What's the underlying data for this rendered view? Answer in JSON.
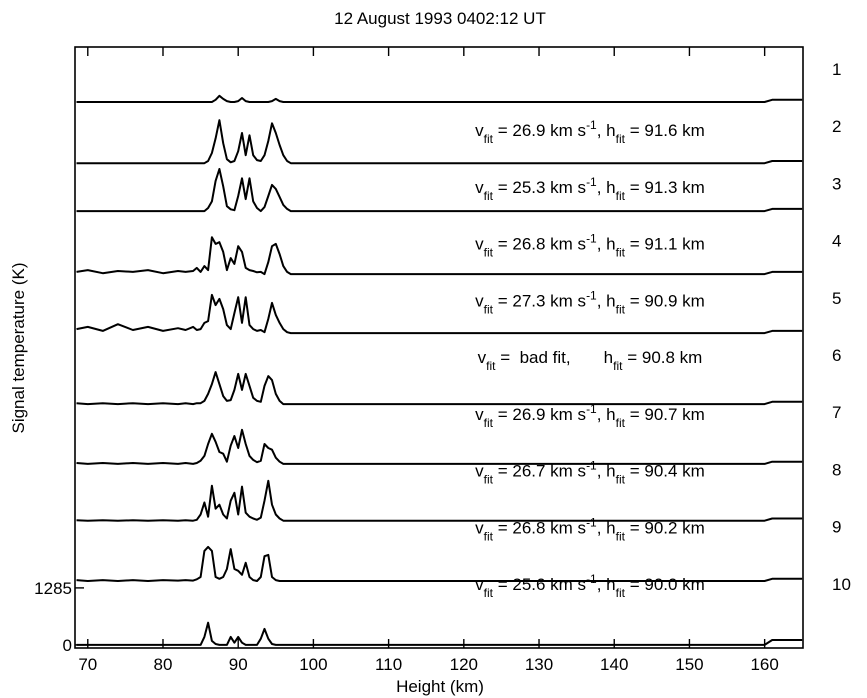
{
  "chart_data": {
    "type": "line",
    "title": "12 August 1993 0402:12 UT",
    "x_label": "Height (km)",
    "y_label": "Signal temperature (K)",
    "xlim": [
      68.3,
      165.1
    ],
    "ylim": [
      -70,
      13480
    ],
    "xticks": [
      70,
      80,
      90,
      100,
      110,
      120,
      130,
      140,
      150,
      160
    ],
    "yticks": [
      0,
      1285
    ],
    "x": [
      68.5,
      70,
      72,
      74,
      76,
      78,
      80,
      82,
      83,
      84,
      84.5,
      85,
      85.5,
      86,
      86.5,
      87,
      87.5,
      88,
      88.5,
      89,
      89.5,
      90,
      90.5,
      91,
      91.5,
      92,
      92.5,
      93,
      93.5,
      94,
      94.5,
      95,
      95.5,
      96,
      96.5,
      97,
      98,
      100,
      110,
      120,
      130,
      140,
      150,
      160,
      161,
      165
    ],
    "series": [
      {
        "name": "1",
        "color": "#000000",
        "values": [
          12240,
          12240,
          12240,
          12240,
          12240,
          12240,
          12240,
          12240,
          12240,
          12240,
          12240,
          12240,
          12240,
          12240,
          12240,
          12290,
          12380,
          12310,
          12260,
          12240,
          12240,
          12260,
          12330,
          12260,
          12240,
          12240,
          12240,
          12240,
          12240,
          12240,
          12260,
          12310,
          12260,
          12240,
          12240,
          12240,
          12240,
          12240,
          12240,
          12240,
          12240,
          12240,
          12240,
          12240,
          12290,
          12290
        ]
      },
      {
        "name": "2",
        "color": "#000000",
        "annotation": [
          {
            "text": "v"
          },
          {
            "text": "fit",
            "style": "sub"
          },
          {
            "text": " = 26.9 km s"
          },
          {
            "text": "-1",
            "style": "super"
          },
          {
            "text": ", h"
          },
          {
            "text": "fit",
            "style": "sub"
          },
          {
            "text": " = 91.6 km"
          }
        ],
        "values": [
          10860,
          10860,
          10860,
          10860,
          10860,
          10860,
          10860,
          10860,
          10860,
          10860,
          10860,
          10860,
          10860,
          10910,
          11090,
          11420,
          11830,
          11310,
          10950,
          10880,
          10910,
          11130,
          11540,
          11040,
          11490,
          11040,
          10930,
          10910,
          11040,
          11360,
          11760,
          11540,
          11270,
          11040,
          10910,
          10860,
          10860,
          10860,
          10860,
          10860,
          10860,
          10860,
          10860,
          10860,
          10910,
          10910
        ]
      },
      {
        "name": "3",
        "color": "#000000",
        "annotation": [
          {
            "text": "v"
          },
          {
            "text": "fit",
            "style": "sub"
          },
          {
            "text": " = 25.3 km s"
          },
          {
            "text": "-1",
            "style": "super"
          },
          {
            "text": ", h"
          },
          {
            "text": "fit",
            "style": "sub"
          },
          {
            "text": " = 91.3 km"
          }
        ],
        "values": [
          9780,
          9780,
          9780,
          9780,
          9780,
          9780,
          9780,
          9780,
          9780,
          9780,
          9780,
          9780,
          9780,
          9850,
          10000,
          10460,
          10730,
          10340,
          9890,
          9820,
          9800,
          10120,
          10520,
          10050,
          10520,
          10000,
          9850,
          9780,
          9870,
          10120,
          10370,
          10280,
          10100,
          9920,
          9830,
          9780,
          9780,
          9780,
          9780,
          9780,
          9780,
          9780,
          9780,
          9780,
          9830,
          9830
        ]
      },
      {
        "name": "4",
        "color": "#000000",
        "annotation": [
          {
            "text": "v"
          },
          {
            "text": "fit",
            "style": "sub"
          },
          {
            "text": " = 26.8 km s"
          },
          {
            "text": "-1",
            "style": "super"
          },
          {
            "text": ", h"
          },
          {
            "text": "fit",
            "style": "sub"
          },
          {
            "text": " = 91.1 km"
          }
        ],
        "values": [
          8410,
          8450,
          8380,
          8430,
          8410,
          8450,
          8380,
          8430,
          8410,
          8430,
          8500,
          8410,
          8540,
          8450,
          9190,
          9040,
          9080,
          8860,
          8450,
          8720,
          8590,
          8990,
          8860,
          8500,
          8450,
          8430,
          8400,
          8410,
          8360,
          8630,
          8990,
          9040,
          8810,
          8540,
          8410,
          8360,
          8360,
          8360,
          8360,
          8360,
          8360,
          8360,
          8360,
          8360,
          8410,
          8410
        ]
      },
      {
        "name": "5",
        "color": "#000000",
        "annotation": [
          {
            "text": "v"
          },
          {
            "text": "fit",
            "style": "sub"
          },
          {
            "text": " = 27.3 km s"
          },
          {
            "text": "-1",
            "style": "super"
          },
          {
            "text": ", h"
          },
          {
            "text": "fit",
            "style": "sub"
          },
          {
            "text": " = 90.9 km"
          }
        ],
        "values": [
          7120,
          7170,
          7080,
          7230,
          7100,
          7170,
          7080,
          7140,
          7100,
          7170,
          7100,
          7120,
          7260,
          7300,
          7890,
          7660,
          7800,
          7570,
          7210,
          7120,
          7480,
          7840,
          7260,
          7840,
          7210,
          7120,
          7080,
          7100,
          7050,
          7350,
          7710,
          7440,
          7260,
          7120,
          7050,
          7030,
          7030,
          7030,
          7030,
          7030,
          7030,
          7030,
          7030,
          7030,
          7080,
          7080
        ]
      },
      {
        "name": "6",
        "color": "#000000",
        "annotation": [
          {
            "text": "v"
          },
          {
            "text": "fit",
            "style": "sub"
          },
          {
            "text": " =  bad fit,       h"
          },
          {
            "text": "fit",
            "style": "sub"
          },
          {
            "text": " = 90.8 km"
          }
        ],
        "values": [
          5450,
          5430,
          5450,
          5430,
          5450,
          5430,
          5450,
          5430,
          5450,
          5430,
          5450,
          5450,
          5500,
          5660,
          5880,
          6150,
          5880,
          5610,
          5500,
          5520,
          5750,
          6110,
          5750,
          6110,
          5840,
          5570,
          5500,
          5480,
          5840,
          6060,
          5970,
          5660,
          5500,
          5430,
          5430,
          5430,
          5430,
          5430,
          5430,
          5430,
          5430,
          5430,
          5430,
          5430,
          5480,
          5480
        ]
      },
      {
        "name": "7",
        "color": "#000000",
        "annotation": [
          {
            "text": "v"
          },
          {
            "text": "fit",
            "style": "sub"
          },
          {
            "text": " = 26.9 km s"
          },
          {
            "text": "-1",
            "style": "super"
          },
          {
            "text": ", h"
          },
          {
            "text": "fit",
            "style": "sub"
          },
          {
            "text": " = 90.7 km"
          }
        ],
        "values": [
          4100,
          4080,
          4100,
          4080,
          4100,
          4080,
          4100,
          4080,
          4100,
          4080,
          4100,
          4150,
          4260,
          4530,
          4760,
          4580,
          4350,
          4310,
          4130,
          4490,
          4710,
          4440,
          4850,
          4530,
          4260,
          4170,
          4120,
          4150,
          4530,
          4440,
          4400,
          4220,
          4130,
          4080,
          4080,
          4080,
          4080,
          4080,
          4080,
          4080,
          4080,
          4080,
          4080,
          4080,
          4130,
          4130
        ]
      },
      {
        "name": "8",
        "color": "#000000",
        "annotation": [
          {
            "text": "v"
          },
          {
            "text": "fit",
            "style": "sub"
          },
          {
            "text": " = 26.7 km s"
          },
          {
            "text": "-1",
            "style": "super"
          },
          {
            "text": ", h"
          },
          {
            "text": "fit",
            "style": "sub"
          },
          {
            "text": " = 90.4 km"
          }
        ],
        "values": [
          2810,
          2800,
          2810,
          2800,
          2810,
          2800,
          2810,
          2800,
          2810,
          2800,
          2820,
          2940,
          3210,
          2890,
          3590,
          3070,
          3160,
          2940,
          2850,
          3250,
          3430,
          2940,
          3570,
          2980,
          2890,
          2850,
          2820,
          2870,
          3250,
          3700,
          3160,
          2940,
          2850,
          2800,
          2800,
          2800,
          2800,
          2800,
          2800,
          2800,
          2800,
          2800,
          2800,
          2800,
          2850,
          2850
        ]
      },
      {
        "name": "9",
        "color": "#000000",
        "annotation": [
          {
            "text": "v"
          },
          {
            "text": "fit",
            "style": "sub"
          },
          {
            "text": " = 26.8 km s"
          },
          {
            "text": "-1",
            "style": "super"
          },
          {
            "text": ", h"
          },
          {
            "text": "fit",
            "style": "sub"
          },
          {
            "text": " = 90.2 km"
          }
        ],
        "values": [
          1460,
          1440,
          1460,
          1440,
          1460,
          1440,
          1460,
          1450,
          1460,
          1450,
          1480,
          1530,
          2120,
          2210,
          2120,
          1530,
          1490,
          1530,
          1710,
          2160,
          1710,
          1670,
          1580,
          1850,
          1530,
          1460,
          1440,
          1530,
          2000,
          2030,
          1530,
          1460,
          1440,
          1440,
          1440,
          1440,
          1440,
          1440,
          1440,
          1440,
          1440,
          1440,
          1440,
          1440,
          1490,
          1490
        ]
      },
      {
        "name": "10",
        "color": "#000000",
        "annotation": [
          {
            "text": "v"
          },
          {
            "text": "fit",
            "style": "sub"
          },
          {
            "text": " = 25.6 km s"
          },
          {
            "text": "-1",
            "style": "super"
          },
          {
            "text": ", h"
          },
          {
            "text": "fit",
            "style": "sub"
          },
          {
            "text": " = 90.0 km"
          }
        ],
        "values": [
          0,
          0,
          0,
          0,
          0,
          0,
          0,
          0,
          0,
          0,
          0,
          0,
          180,
          500,
          90,
          20,
          0,
          0,
          0,
          180,
          50,
          180,
          50,
          0,
          0,
          0,
          0,
          140,
          360,
          140,
          20,
          0,
          0,
          0,
          0,
          0,
          0,
          0,
          0,
          0,
          0,
          0,
          0,
          0,
          110,
          110
        ]
      }
    ]
  }
}
